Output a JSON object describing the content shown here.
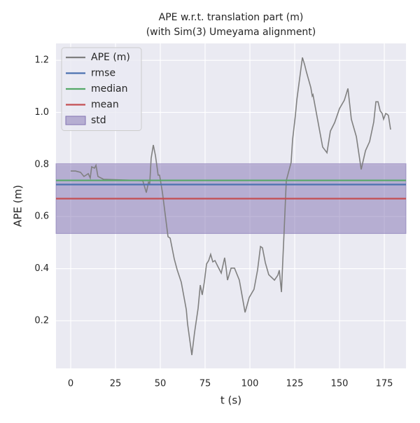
{
  "chart_data": {
    "type": "line",
    "title": [
      "APE w.r.t. translation part (m)",
      "(with Sim(3) Umeyama alignment)"
    ],
    "xlabel": "t (s)",
    "ylabel": "APE (m)",
    "xlim": [
      -8.2,
      187.1
    ],
    "ylim": [
      0.017,
      1.265
    ],
    "xticks": [
      0,
      25,
      50,
      75,
      100,
      125,
      150,
      175
    ],
    "yticks": [
      0.2,
      0.4,
      0.6,
      0.8,
      {
        "value": 1,
        "label": "1.0"
      },
      1.2
    ],
    "grid": true,
    "legend": "upper left",
    "series": [
      {
        "name": "APE (m)",
        "color": "#808080",
        "x": [
          0,
          2.7,
          5.5,
          7.4,
          9.8,
          10.9,
          11.7,
          13.3,
          14.1,
          15.2,
          18.4,
          40.2,
          42.2,
          43.4,
          44.1,
          44.9,
          46.1,
          47.3,
          48.8,
          49.6,
          51.2,
          54.3,
          55.5,
          57.8,
          59.4,
          61.7,
          64.5,
          65.2,
          67.6,
          69.1,
          71.1,
          72.3,
          73.4,
          74.6,
          75.8,
          77.0,
          78.1,
          79.3,
          80.5,
          82.0,
          84.0,
          85.9,
          86.7,
          87.5,
          89.5,
          91.4,
          94.1,
          97.3,
          99.6,
          102.3,
          104.3,
          105.9,
          107.0,
          108.6,
          110.5,
          113.7,
          115.6,
          116.4,
          117.6,
          118.4,
          119.1,
          120.3,
          123.0,
          123.8,
          125.4,
          126.2,
          129.3,
          130.5,
          131.6,
          134.0,
          134.8,
          135.2,
          140.6,
          143.0,
          144.9,
          147.3,
          150.0,
          152.7,
          154.7,
          156.6,
          159.4,
          162.1,
          164.5,
          166.8,
          169.1,
          170.3,
          171.5,
          172.7,
          173.8,
          174.6,
          175.8,
          176.6,
          177.3,
          178.5
        ],
        "values": [
          0.775,
          0.775,
          0.77,
          0.754,
          0.765,
          0.748,
          0.791,
          0.786,
          0.797,
          0.754,
          0.743,
          0.738,
          0.692,
          0.732,
          0.727,
          0.824,
          0.875,
          0.834,
          0.759,
          0.759,
          0.692,
          0.523,
          0.517,
          0.437,
          0.396,
          0.348,
          0.243,
          0.189,
          0.068,
          0.154,
          0.248,
          0.337,
          0.299,
          0.35,
          0.418,
          0.431,
          0.455,
          0.426,
          0.431,
          0.41,
          0.383,
          0.442,
          0.404,
          0.356,
          0.402,
          0.402,
          0.356,
          0.232,
          0.289,
          0.321,
          0.396,
          0.485,
          0.48,
          0.423,
          0.377,
          0.356,
          0.375,
          0.394,
          0.31,
          0.437,
          0.544,
          0.738,
          0.808,
          0.894,
          0.99,
          1.049,
          1.211,
          1.184,
          1.154,
          1.095,
          1.063,
          1.068,
          0.867,
          0.845,
          0.928,
          0.961,
          1.015,
          1.047,
          1.092,
          0.974,
          0.907,
          0.781,
          0.853,
          0.888,
          0.963,
          1.041,
          1.041,
          1.006,
          0.996,
          0.974,
          0.996,
          0.993,
          0.988,
          0.934
        ]
      }
    ],
    "stats": [
      {
        "name": "rmse",
        "color": "#4c72b0",
        "value": 0.723
      },
      {
        "name": "median",
        "color": "#55a868",
        "value": 0.739
      },
      {
        "name": "mean",
        "color": "#c44e52",
        "value": 0.669
      }
    ],
    "std": {
      "name": "std",
      "color": "#8172b2",
      "value": 0.134
    }
  }
}
